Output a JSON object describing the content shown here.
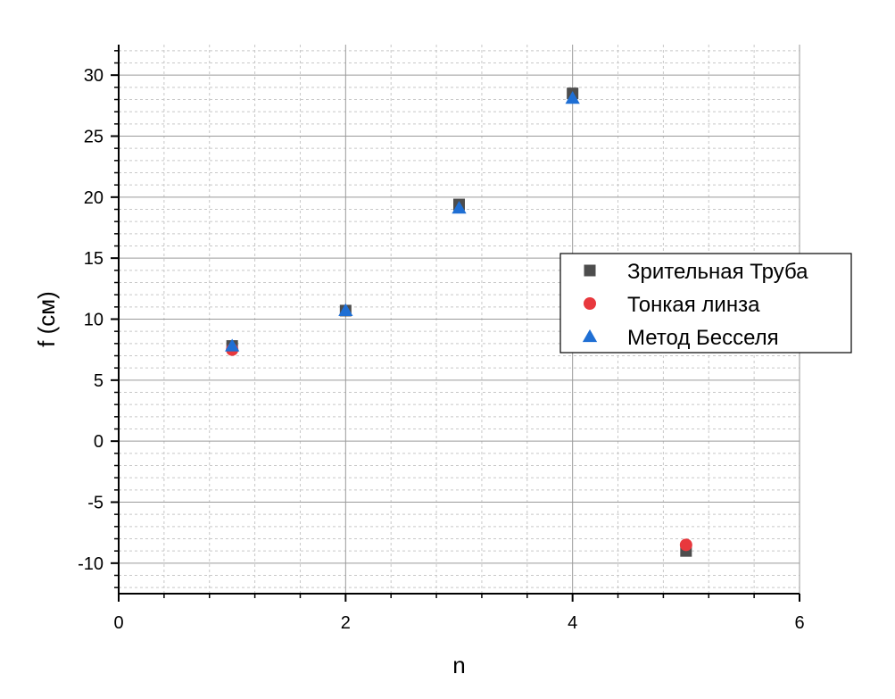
{
  "chart_data": {
    "type": "scatter",
    "xlabel": "n",
    "ylabel": "f (см)",
    "xlim": [
      0,
      6
    ],
    "ylim": [
      -12.5,
      32.5
    ],
    "x_ticks": [
      0,
      2,
      4,
      6
    ],
    "y_ticks": [
      -10,
      -5,
      0,
      5,
      10,
      15,
      20,
      25,
      30
    ],
    "x_minor_step": 0.4,
    "y_minor_step": 1,
    "grid": "major and minor",
    "legend_position": "right",
    "series": [
      {
        "name": "Зрительная Труба",
        "marker": "square",
        "color": "#4d4d4d",
        "x": [
          1,
          2,
          3,
          4,
          5
        ],
        "y": [
          7.8,
          10.7,
          19.4,
          28.5,
          -9.0
        ]
      },
      {
        "name": "Тонкая линза",
        "marker": "circle",
        "color": "#e8383d",
        "x": [
          1,
          5
        ],
        "y": [
          7.5,
          -8.5
        ]
      },
      {
        "name": "Метод Бесселя",
        "marker": "triangle",
        "color": "#1f6fd4",
        "x": [
          1,
          2,
          3,
          4
        ],
        "y": [
          7.8,
          10.7,
          19.1,
          28.1
        ]
      }
    ]
  }
}
